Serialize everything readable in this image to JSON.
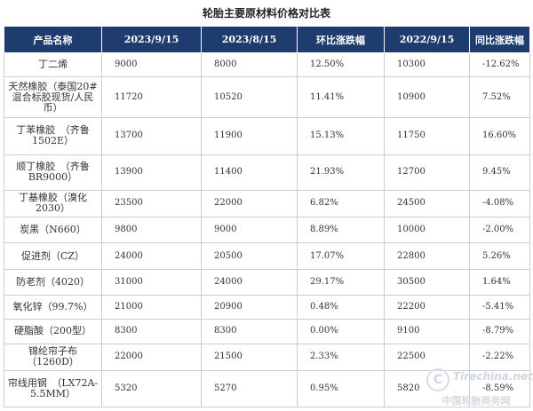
{
  "title": "轮胎主要原材料价格对比表",
  "headers": [
    "产品名称",
    "2023/9/15",
    "2023/8/15",
    "环比涨跌幅",
    "2022/9/15",
    "同比涨跌幅"
  ],
  "rows": [
    {
      "name": "丁二烯",
      "p2023_9": "9000",
      "p2023_8": "8000",
      "mom": "12.50%",
      "p2022_9": "10300",
      "yoy": "-12.62%"
    },
    {
      "name": "天然橡胶（泰国20#混合标胶现货/人民币）",
      "p2023_9": "11720",
      "p2023_8": "10520",
      "mom": "11.41%",
      "p2022_9": "10900",
      "yoy": "7.52%"
    },
    {
      "name": "丁苯橡胶　（齐鲁1502E）",
      "p2023_9": "13700",
      "p2023_8": "11900",
      "mom": "15.13%",
      "p2022_9": "11750",
      "yoy": "16.60%"
    },
    {
      "name": "顺丁橡胶　（齐鲁BR9000）",
      "p2023_9": "13900",
      "p2023_8": "11400",
      "mom": "21.93%",
      "p2022_9": "12700",
      "yoy": "9.45%"
    },
    {
      "name": "丁基橡胶（溴化2030）",
      "p2023_9": "23500",
      "p2023_8": "22000",
      "mom": "6.82%",
      "p2022_9": "24500",
      "yoy": "-4.08%"
    },
    {
      "name": "炭黑（N660）",
      "p2023_9": "9800",
      "p2023_8": "9000",
      "mom": "8.89%",
      "p2022_9": "10000",
      "yoy": "-2.00%"
    },
    {
      "name": "促进剂（CZ）",
      "p2023_9": "24000",
      "p2023_8": "20500",
      "mom": "17.07%",
      "p2022_9": "22800",
      "yoy": "5.26%"
    },
    {
      "name": "防老剂（4020）",
      "p2023_9": "31000",
      "p2023_8": "24000",
      "mom": "29.17%",
      "p2022_9": "30500",
      "yoy": "1.64%"
    },
    {
      "name": "氧化锌（99.7%）",
      "p2023_9": "21000",
      "p2023_8": "20900",
      "mom": "0.48%",
      "p2022_9": "22200",
      "yoy": "-5.41%"
    },
    {
      "name": "硬脂酸（200型）",
      "p2023_9": "8300",
      "p2023_8": "8300",
      "mom": "0.00%",
      "p2022_9": "9100",
      "yoy": "-8.79%"
    },
    {
      "name": "锦纶帘子布（1260D）",
      "p2023_9": "22000",
      "p2023_8": "21500",
      "mom": "2.33%",
      "p2022_9": "22500",
      "yoy": "-2.22%"
    },
    {
      "name": "帘线用钢　（LX72A-5.5MM）",
      "p2023_9": "5320",
      "p2023_8": "5270",
      "mom": "0.95%",
      "p2022_9": "5820",
      "yoy": "-8.59%"
    }
  ],
  "watermark": {
    "site": "Tirechina.net",
    "cn": "中国轮胎商务网",
    "logo": "C"
  }
}
